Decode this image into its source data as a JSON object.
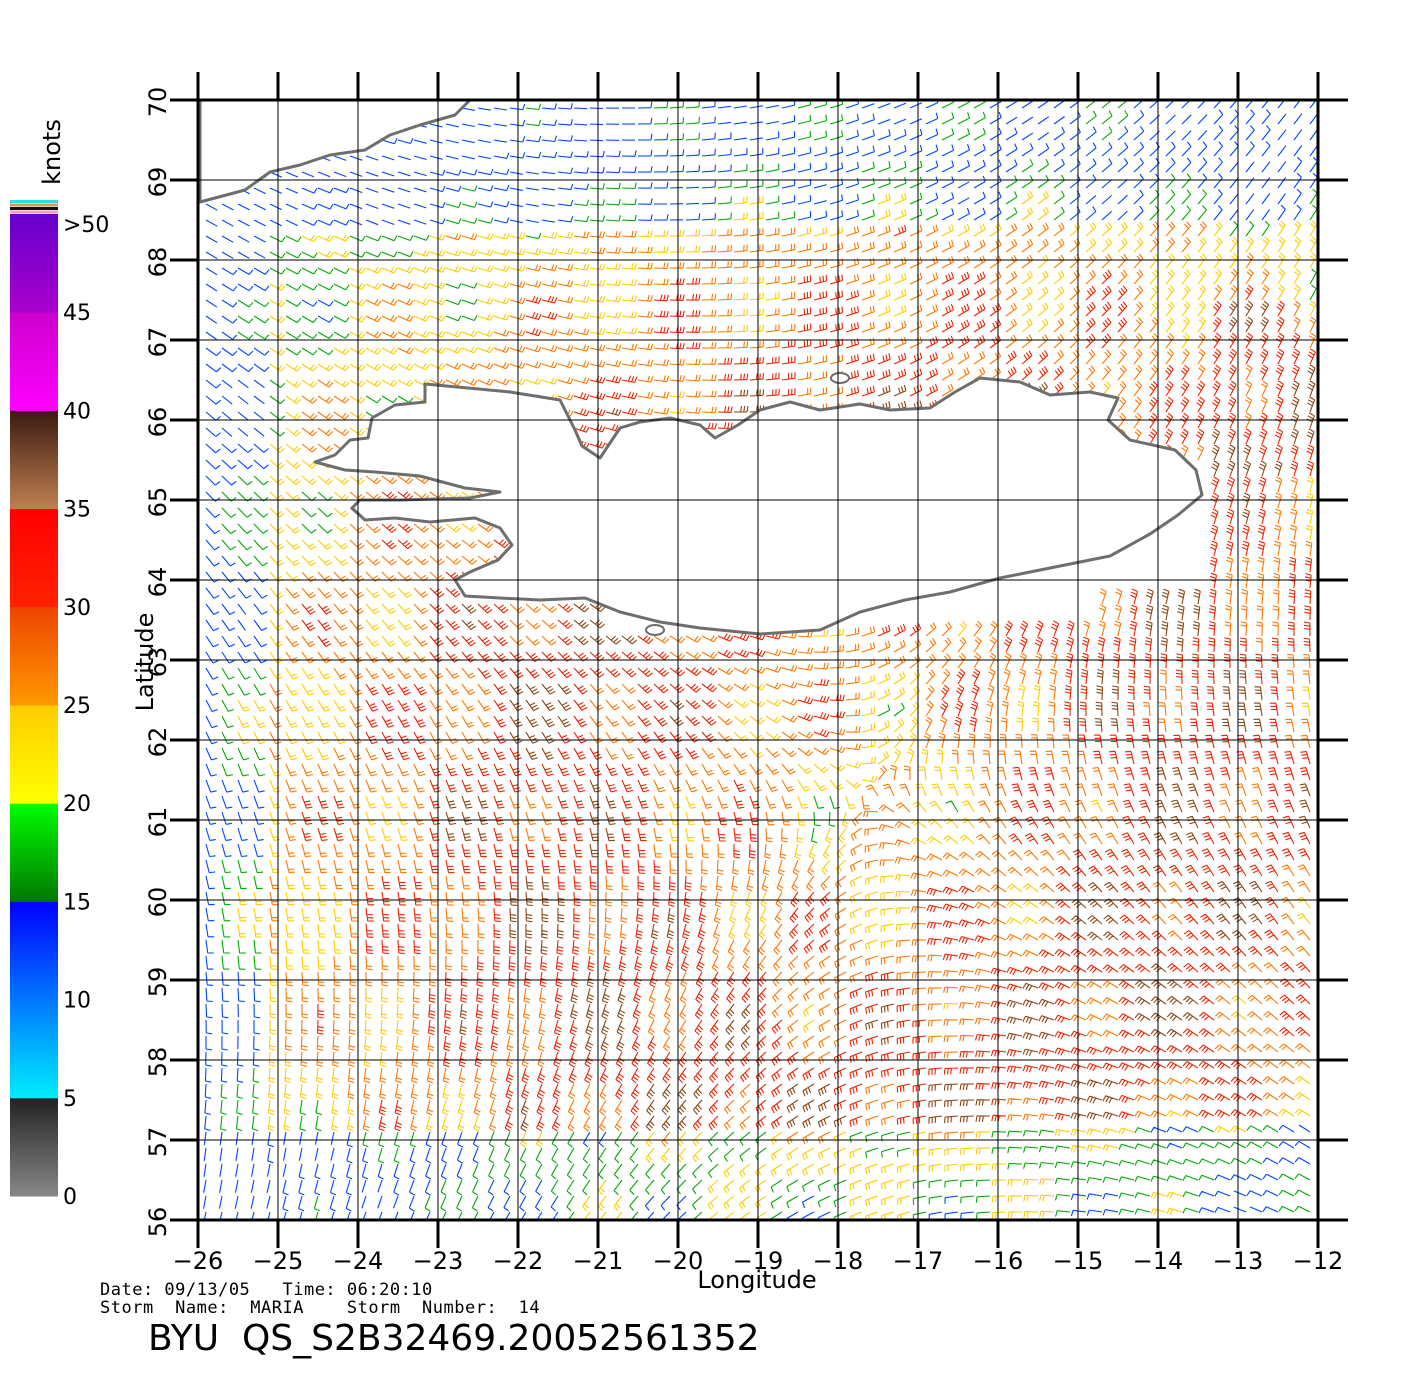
{
  "map": {
    "x_axis_title": "Longitude",
    "y_axis_title": "Latitude",
    "lon_range": [
      -26,
      -12
    ],
    "lat_range": [
      56,
      70
    ],
    "lon_ticks": [
      "-26",
      "-25",
      "-24",
      "-23",
      "-22",
      "-21",
      "-20",
      "-19",
      "-18",
      "-17",
      "-16",
      "-15",
      "-14",
      "-13",
      "-12"
    ],
    "lat_ticks": [
      "56",
      "57",
      "58",
      "59",
      "60",
      "61",
      "62",
      "63",
      "64",
      "65",
      "66",
      "67",
      "68",
      "69",
      "70"
    ],
    "grid": true,
    "land_fill": "#ffffff",
    "coastline_color": "#6e6e6e",
    "grid_color": "#000000"
  },
  "legend": {
    "title": "knots",
    "labels": [
      ">50",
      "45",
      "40",
      "35",
      "30",
      "25",
      "20",
      "15",
      "10",
      "5",
      "0"
    ],
    "bands": [
      {
        "range": "0-5",
        "colors": [
          "#888888",
          "#222222"
        ]
      },
      {
        "range": "5-10",
        "colors": [
          "#00eeff",
          "#0077ff"
        ]
      },
      {
        "range": "10-15",
        "colors": [
          "#0077ff",
          "#0000ff"
        ]
      },
      {
        "range": "15-20",
        "colors": [
          "#007700",
          "#00ff00"
        ]
      },
      {
        "range": "20-25",
        "colors": [
          "#ffff00",
          "#ffcc00"
        ]
      },
      {
        "range": "25-30",
        "colors": [
          "#ff9900",
          "#ee4400"
        ]
      },
      {
        "range": "30-35",
        "colors": [
          "#ff2200",
          "#ff0000"
        ]
      },
      {
        "range": "35-40",
        "colors": [
          "#c08050",
          "#3a1a10"
        ]
      },
      {
        "range": "40-45",
        "colors": [
          "#ff00ff",
          "#cc00cc"
        ]
      },
      {
        "range": "45-50",
        "colors": [
          "#aa00cc",
          "#6600cc"
        ]
      }
    ]
  },
  "wind_colors": {
    "calm": "#444444",
    "light": "#0044ff",
    "moderate": "#00aa00",
    "fresh": "#ffcc00",
    "strong": "#ff7700",
    "gale": "#ee2200",
    "storm": "#8b4513",
    "violent": "#cc00cc"
  },
  "captions": {
    "line1": "Date: 09/13/05   Time: 06:20:10",
    "line2": "Storm  Name:  MARIA    Storm  Number:  14",
    "product": "BYU  QS_S2B32469.20052561352"
  }
}
